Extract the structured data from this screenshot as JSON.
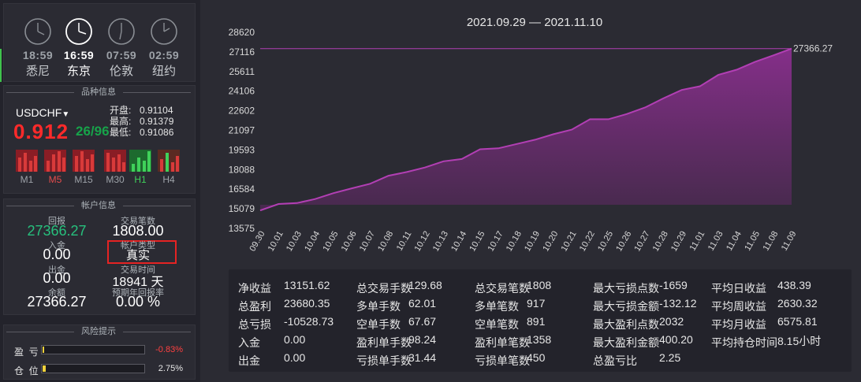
{
  "clocks": [
    {
      "time": "18:59",
      "city": "悉尼"
    },
    {
      "time": "16:59",
      "city": "东京"
    },
    {
      "time": "07:59",
      "city": "伦敦"
    },
    {
      "time": "02:59",
      "city": "纽约"
    }
  ],
  "symbol_panel": {
    "title": "品种信息",
    "symbol": "USDCHF",
    "price": "0.912",
    "change": "26/96",
    "open_label": "开盘:",
    "open": "0.91104",
    "high_label": "最高:",
    "high": "0.91379",
    "low_label": "最低:",
    "low": "0.91086",
    "timeframes": [
      "M1",
      "M5",
      "M15",
      "M30",
      "H1",
      "H4"
    ]
  },
  "account_panel": {
    "title": "帐户信息",
    "return_label": "回报",
    "return_value": "27366.27",
    "trades_label": "交易笔数",
    "trades_value": "1808.00",
    "deposit_label": "入金",
    "deposit_value": "0.00",
    "acct_type_label": "帐户类型",
    "acct_type_value": "真实",
    "withdraw_label": "出金",
    "withdraw_value": "0.00",
    "trade_time_label": "交易时间",
    "trade_time_value": "18941 天",
    "balance_label": "余额",
    "balance_value": "27366.27",
    "annual_label": "预期年回报率",
    "annual_value": "0.00 %"
  },
  "risk_panel": {
    "title": "风险提示",
    "profit_label": "盈  亏",
    "profit_value": "-0.83%",
    "profit_fill": 0.0083,
    "position_label": "仓  位",
    "position_value": "2.75%",
    "position_fill": 0.0275
  },
  "chart_data": {
    "type": "area",
    "title": "2021.09.29 — 2021.11.10",
    "yticks": [
      28620,
      27116,
      25611,
      24106,
      22602,
      21097,
      19593,
      18088,
      16584,
      15079,
      13575
    ],
    "ylim": [
      13575,
      28620
    ],
    "x": [
      "09.30",
      "10.01",
      "10.03",
      "10.04",
      "10.05",
      "10.06",
      "10.07",
      "10.08",
      "10.11",
      "10.12",
      "10.13",
      "10.14",
      "10.15",
      "10.17",
      "10.18",
      "10.19",
      "10.20",
      "10.21",
      "10.22",
      "10.25",
      "10.26",
      "10.27",
      "10.28",
      "10.29",
      "11.01",
      "11.03",
      "11.04",
      "11.05",
      "11.08",
      "11.09"
    ],
    "values": [
      14950,
      15450,
      15520,
      15830,
      16280,
      16650,
      17000,
      17620,
      17900,
      18250,
      18720,
      18900,
      19650,
      19720,
      20050,
      20380,
      20800,
      21150,
      21950,
      21950,
      22350,
      22850,
      23550,
      24200,
      24480,
      25350,
      25750,
      26350,
      26850,
      27366.27
    ],
    "last_label": "27366.27",
    "line_color": "#b23fb4",
    "fill_color": "#7a2b7e",
    "ref_line_value": 27366.27
  },
  "stats": [
    [
      {
        "label": "净收益",
        "value": "13151.62"
      },
      {
        "label": "总盈利",
        "value": "23680.35"
      },
      {
        "label": "总亏损",
        "value": "-10528.73"
      },
      {
        "label": "入金",
        "value": "0.00"
      },
      {
        "label": "出金",
        "value": "0.00"
      }
    ],
    [
      {
        "label": "总交易手数",
        "value": "129.68"
      },
      {
        "label": "多单手数",
        "value": "62.01"
      },
      {
        "label": "空单手数",
        "value": "67.67"
      },
      {
        "label": "盈利单手数",
        "value": "98.24"
      },
      {
        "label": "亏损单手数",
        "value": "31.44"
      }
    ],
    [
      {
        "label": "总交易笔数",
        "value": "1808"
      },
      {
        "label": "多单笔数",
        "value": "917"
      },
      {
        "label": "空单笔数",
        "value": "891"
      },
      {
        "label": "盈利单笔数",
        "value": "1358"
      },
      {
        "label": "亏损单笔数",
        "value": "450"
      }
    ],
    [
      {
        "label": "最大亏损点数",
        "value": "-1659"
      },
      {
        "label": "最大亏损金额",
        "value": "-132.12"
      },
      {
        "label": "最大盈利点数",
        "value": "2032"
      },
      {
        "label": "最大盈利金额",
        "value": "400.20"
      },
      {
        "label": "总盈亏比",
        "value": "2.25"
      }
    ],
    [
      {
        "label": "平均日收益",
        "value": "438.39"
      },
      {
        "label": "平均周收益",
        "value": "2630.32"
      },
      {
        "label": "平均月收益",
        "value": "6575.81"
      },
      {
        "label": "平均持仓时间",
        "value": "8.15小时"
      }
    ]
  ]
}
